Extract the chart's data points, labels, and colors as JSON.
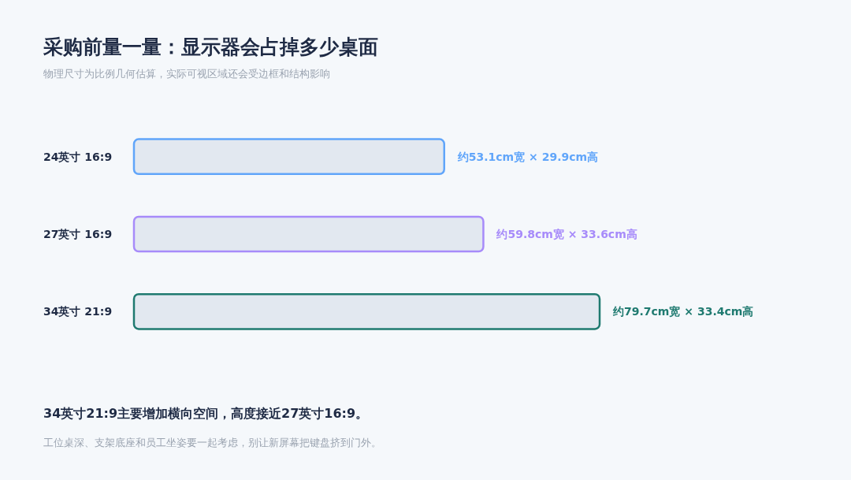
{
  "chart_data": {
    "type": "bar",
    "orientation": "horizontal",
    "title": "采购前量一量：显示器会占掉多少桌面",
    "subtitle": "物理尺寸为比例几何估算，实际可视区域还会受边框和结构影响",
    "categories": [
      "24英寸 16:9",
      "27英寸 16:9",
      "34英寸 21:9"
    ],
    "values": [
      53.1,
      59.8,
      79.7
    ],
    "colors": [
      "#60a5fa",
      "#a78bfa",
      "#1f7a70"
    ],
    "value_labels": [
      "约53.1cm宽 × 29.9cm高",
      "约59.8cm宽 × 33.6cm高",
      "约79.7cm宽 × 33.4cm高"
    ],
    "annotations": [
      "34英寸21:9主要增加横向空间，高度接近27英寸16:9。",
      "工位桌深、支架底座和员工坐姿要一起考虑，别让新屏幕把键盘挤到门外。"
    ],
    "tick_labels": "y"
  }
}
